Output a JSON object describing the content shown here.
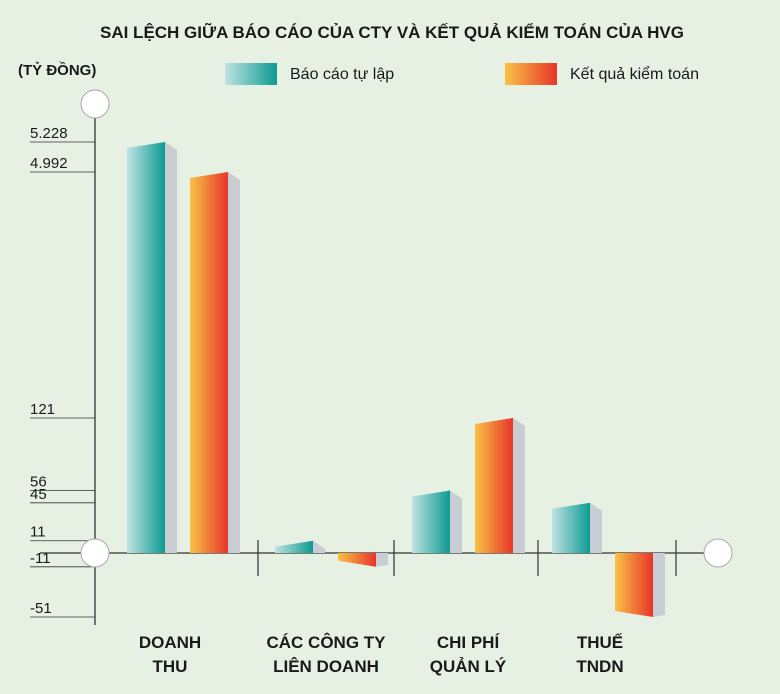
{
  "chart_data": {
    "type": "bar",
    "title": "SAI LỆCH GIỮA BÁO CÁO CỦA CTY VÀ KẾT QUẢ KIỂM TOÁN CỦA HVG",
    "unit_label": "(TỶ ĐỒNG)",
    "categories": [
      [
        "DOANH",
        "THU"
      ],
      [
        "CÁC CÔNG TY",
        "LIÊN DOANH"
      ],
      [
        "CHI PHÍ",
        "QUẢN LÝ"
      ],
      [
        "THUẾ",
        "TNDN"
      ]
    ],
    "series": [
      {
        "name": "Báo cáo tự lập",
        "values": [
          5228,
          11,
          56,
          45
        ]
      },
      {
        "name": "Kết quả kiểm toán",
        "values": [
          4992,
          -11,
          121,
          -51
        ]
      }
    ],
    "tick_labels": [
      "5.228",
      "4.992",
      "121",
      "56",
      "45",
      "11",
      "-11",
      "-51"
    ],
    "legend_position": "top",
    "axis_break": true,
    "colors": {
      "series1_light": "#bfe3e2",
      "series1_dark": "#0d9a93",
      "series2_light": "#f7c245",
      "series2_dark": "#e8342a",
      "bar_side": "#c7cdd3",
      "background": "#e6f1e4",
      "axis": "#333333",
      "gridline": "#b9c9b9"
    }
  }
}
